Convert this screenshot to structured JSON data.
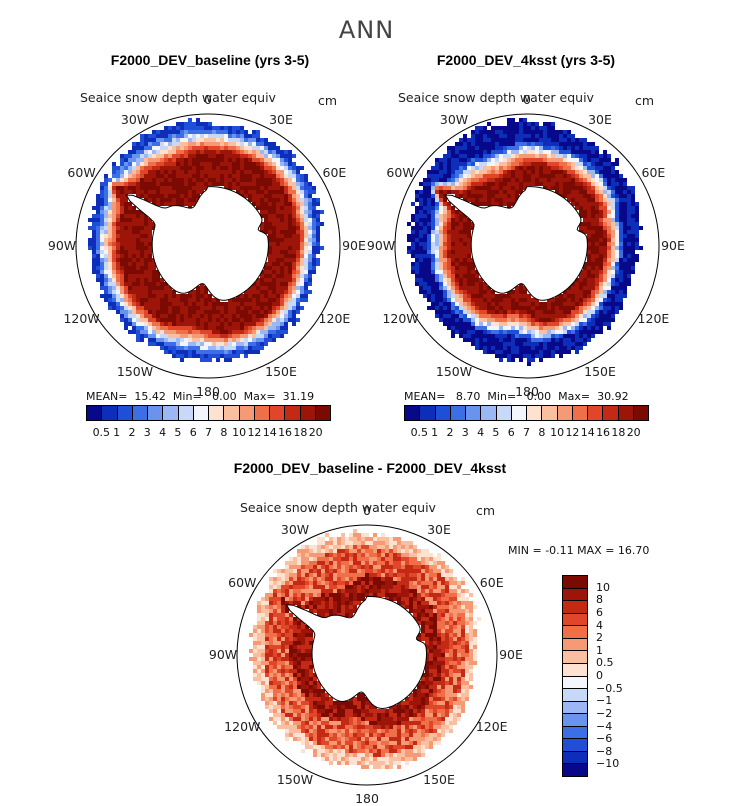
{
  "figure": {
    "suptitle": "ANN",
    "variable": "Seaice snow depth water equiv",
    "units": "cm"
  },
  "lon_labels": [
    "0",
    "30E",
    "60E",
    "90E",
    "120E",
    "150E",
    "180",
    "150W",
    "120W",
    "90W",
    "60W",
    "30W"
  ],
  "panels": [
    {
      "title": "F2000_DEV_baseline (yrs 3-5)",
      "mean_label": "MEAN=",
      "mean": "15.42",
      "min_label": "Min=",
      "min": "0.00",
      "max_label": "Max=",
      "max": "31.19",
      "outer_class": 1,
      "transition": 0.55
    },
    {
      "title": "F2000_DEV_4ksst (yrs 3-5)",
      "mean_label": "MEAN=",
      "mean": "8.70",
      "min_label": "Min=",
      "min": "0.00",
      "max_label": "Max=",
      "max": "30.92",
      "outer_class": 0,
      "transition": 0.35
    }
  ],
  "abs_colorbar": {
    "ticks": [
      "0.5",
      "1",
      "2",
      "3",
      "4",
      "5",
      "6",
      "7",
      "8",
      "10",
      "12",
      "14",
      "16",
      "18",
      "20"
    ],
    "colors": [
      "#08088a",
      "#0c2eb8",
      "#1f4fd8",
      "#3c6fe6",
      "#6a93ee",
      "#9bb8f4",
      "#c7d8f8",
      "#f2f5fb",
      "#fde2d2",
      "#f9bf9f",
      "#f59a74",
      "#ef7048",
      "#e0472a",
      "#c22a16",
      "#9c1508",
      "#7a0a02"
    ]
  },
  "diff_panel": {
    "title": "F2000_DEV_baseline - F2000_DEV_4ksst",
    "min_label": "MIN =",
    "min": "-0.11",
    "max_label": "MAX =",
    "max": "16.70"
  },
  "diff_colorbar": {
    "ticks": [
      "10",
      "8",
      "6",
      "4",
      "2",
      "1",
      "0.5",
      "0",
      "−0.5",
      "−1",
      "−2",
      "−4",
      "−6",
      "−8",
      "−10"
    ],
    "colors": [
      "#7a0a02",
      "#9c1508",
      "#c22a16",
      "#e0472a",
      "#ef7048",
      "#f59a74",
      "#f9bf9f",
      "#fde2d2",
      "#f4f6fb",
      "#c7d8f8",
      "#9bb8f4",
      "#6a93ee",
      "#3c6fe6",
      "#1f4fd8",
      "#0c2eb8",
      "#08088a"
    ]
  }
}
